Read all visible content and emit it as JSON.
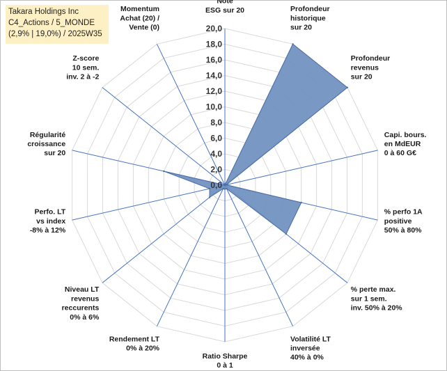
{
  "header": {
    "line1": "Takara Holdings Inc",
    "line2": "C4_Actions / 5_MONDE",
    "line3": "(2,9% | 19,0%) / 2025W35"
  },
  "chart_data": {
    "type": "radar",
    "range": [
      0,
      20
    ],
    "ticks": [
      "0,0",
      "2,0",
      "4,0",
      "6,0",
      "8,0",
      "10,0",
      "12,0",
      "14,0",
      "16,0",
      "18,0",
      "20,0"
    ],
    "axes": [
      {
        "label": [
          "Note",
          "ESG sur 20"
        ],
        "value": 0
      },
      {
        "label": [
          "Profondeur",
          "historique",
          "sur 20"
        ],
        "value": 20
      },
      {
        "label": [
          "Profondeur",
          "revenus",
          "sur 20"
        ],
        "value": 20
      },
      {
        "label": [
          "Capi. bours.",
          "en MdEUR",
          "0 à 60 G€"
        ],
        "value": 0.2
      },
      {
        "label": [
          "% perfo 1A",
          "positive",
          "50% à 80%"
        ],
        "value": 10
      },
      {
        "label": [
          "% perte max.",
          "sur 1 sem.",
          "inv. 50% à 20%"
        ],
        "value": 10
      },
      {
        "label": [
          "Volatilité LT",
          "inversée",
          "40% à 0%"
        ],
        "value": 0.5
      },
      {
        "label": [
          "Ratio Sharpe",
          "0 à 1"
        ],
        "value": 0.5
      },
      {
        "label": [
          "Rendement LT",
          "0% à 20%"
        ],
        "value": 0.5
      },
      {
        "label": [
          "Niveau LT",
          "revenus",
          "reccurents",
          "0% à 6%"
        ],
        "value": 2.5
      },
      {
        "label": [
          "Perfo. LT",
          "vs index",
          "-8% à 12%"
        ],
        "value": 2
      },
      {
        "label": [
          "Régularité",
          "croissance",
          "sur 20"
        ],
        "value": 8
      },
      {
        "label": [
          "Z-score",
          "10 sem.",
          "inv. 2 à -2"
        ],
        "value": 0
      },
      {
        "label": [
          "Momentum",
          "Achat (20) /",
          "Vente (0)"
        ],
        "value": 0
      }
    ],
    "colors": {
      "fill": "#6f8fbf",
      "stroke": "#4a6fa5",
      "grid": "#d9d9d9",
      "spoke": "#4472c4"
    }
  }
}
